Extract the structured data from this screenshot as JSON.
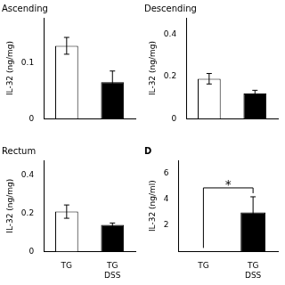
{
  "chart_data": [
    {
      "type": "bar",
      "title": "Ascending",
      "ylabel": "IL-32 (ng/mg)",
      "categories": [
        null,
        null
      ],
      "values": [
        0.13,
        0.065
      ],
      "errors": [
        0.015,
        0.02
      ],
      "colors": [
        "white",
        "black"
      ],
      "ylim": [
        0,
        0.18
      ],
      "yticks": [
        0,
        0.1
      ],
      "grid": false
    },
    {
      "type": "bar",
      "title": "Descending",
      "ylabel": "IL-32 (ng/mg)",
      "categories": [
        null,
        null
      ],
      "values": [
        0.19,
        0.12
      ],
      "errors": [
        0.025,
        0.015
      ],
      "colors": [
        "white",
        "black"
      ],
      "ylim": [
        0,
        0.48
      ],
      "yticks": [
        0,
        0.2,
        0.4
      ],
      "grid": false
    },
    {
      "type": "bar",
      "title": "Rectum",
      "ylabel": "IL-32 (ng/mg)",
      "categories": [
        "TG",
        "TG\nDSS"
      ],
      "values": [
        0.21,
        0.14
      ],
      "errors": [
        0.035,
        0.01
      ],
      "colors": [
        "white",
        "black"
      ],
      "ylim": [
        0,
        0.48
      ],
      "yticks": [
        0,
        0.2,
        0.4
      ],
      "grid": false
    },
    {
      "type": "bar",
      "title": "D",
      "ylabel": "IL-32 (ng/ml)",
      "categories": [
        "TG",
        "TG\nDSS"
      ],
      "values": [
        0,
        3.0
      ],
      "errors": [
        0,
        1.2
      ],
      "colors": [
        "white",
        "black"
      ],
      "ylim": [
        0,
        7
      ],
      "yticks": [
        2,
        4,
        6
      ],
      "grid": false,
      "annotations": [
        "*"
      ]
    }
  ]
}
